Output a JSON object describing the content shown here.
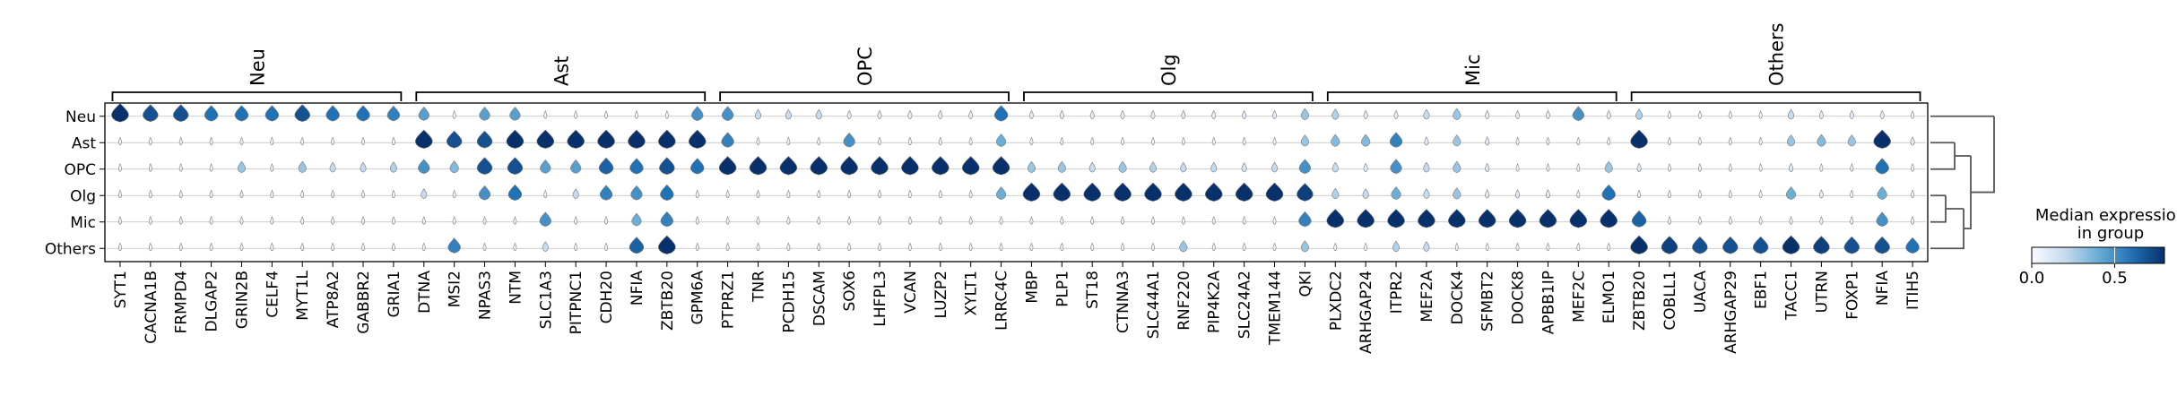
{
  "chart_data": {
    "type": "stacked-violin",
    "rows": [
      "Neu",
      "Ast",
      "OPC",
      "Olg",
      "Mic",
      "Others"
    ],
    "groups": [
      {
        "name": "Neu",
        "genes": [
          "SYT1",
          "CACNA1B",
          "FRMPD4",
          "DLGAP2",
          "GRIN2B",
          "CELF4",
          "MYT1L",
          "ATP8A2",
          "GABBR2",
          "GRIA1"
        ]
      },
      {
        "name": "Ast",
        "genes": [
          "DTNA",
          "MSI2",
          "NPAS3",
          "NTM",
          "SLC1A3",
          "PITPNC1",
          "CDH20",
          "NFIA",
          "ZBTB20",
          "GPM6A"
        ]
      },
      {
        "name": "OPC",
        "genes": [
          "PTPRZ1",
          "TNR",
          "PCDH15",
          "DSCAM",
          "SOX6",
          "LHFPL3",
          "VCAN",
          "LUZP2",
          "XYLT1",
          "LRRC4C"
        ]
      },
      {
        "name": "Olg",
        "genes": [
          "MBP",
          "PLP1",
          "ST18",
          "CTNNA3",
          "SLC44A1",
          "RNF220",
          "PIP4K2A",
          "SLC24A2",
          "TMEM144",
          "QKI"
        ]
      },
      {
        "name": "Mic",
        "genes": [
          "PLXDC2",
          "ARHGAP24",
          "ITPR2",
          "MEF2A",
          "DOCK4",
          "SFMBT2",
          "DOCK8",
          "APBB1IP",
          "MEF2C",
          "ELMO1"
        ]
      },
      {
        "name": "Others",
        "genes": [
          "ZBTB20",
          "COBLL1",
          "UACA",
          "ARHGAP29",
          "EBF1",
          "TACC1",
          "UTRN",
          "FOXP1",
          "NFIA",
          "ITIH5"
        ]
      }
    ],
    "median_expression": [
      [
        0.85,
        0.7,
        0.7,
        0.6,
        0.6,
        0.6,
        0.7,
        0.6,
        0.6,
        0.55,
        0.45,
        0.05,
        0.45,
        0.45,
        0.05,
        0.05,
        0.05,
        0.05,
        0.05,
        0.5,
        0.5,
        0.2,
        0.2,
        0.2,
        0.1,
        0.1,
        0.1,
        0.1,
        0.1,
        0.6,
        0.1,
        0.1,
        0.1,
        0.1,
        0.1,
        0.1,
        0.1,
        0.1,
        0.1,
        0.3,
        0.25,
        0.1,
        0.1,
        0.2,
        0.3,
        0.1,
        0.1,
        0.1,
        0.5,
        0.1,
        0.25,
        0.05,
        0.05,
        0.05,
        0.05,
        0.2,
        0.1,
        0.1,
        0.1,
        0.05
      ],
      [
        0.05,
        0.05,
        0.05,
        0.05,
        0.05,
        0.05,
        0.05,
        0.05,
        0.05,
        0.05,
        0.85,
        0.7,
        0.7,
        0.85,
        0.8,
        0.8,
        0.85,
        0.8,
        0.8,
        0.9,
        0.55,
        0.05,
        0.05,
        0.05,
        0.5,
        0.05,
        0.05,
        0.05,
        0.05,
        0.4,
        0.05,
        0.05,
        0.05,
        0.05,
        0.05,
        0.05,
        0.05,
        0.05,
        0.05,
        0.3,
        0.35,
        0.35,
        0.55,
        0.1,
        0.3,
        0.1,
        0.05,
        0.05,
        0.05,
        0.05,
        0.8,
        0.05,
        0.05,
        0.05,
        0.05,
        0.3,
        0.35,
        0.3,
        0.85,
        0.1
      ],
      [
        0.05,
        0.05,
        0.05,
        0.05,
        0.3,
        0.05,
        0.3,
        0.2,
        0.2,
        0.25,
        0.5,
        0.35,
        0.7,
        0.7,
        0.45,
        0.45,
        0.65,
        0.6,
        0.7,
        0.6,
        0.85,
        0.85,
        0.9,
        0.85,
        0.85,
        0.8,
        0.8,
        0.85,
        0.9,
        0.85,
        0.3,
        0.3,
        0.2,
        0.3,
        0.25,
        0.2,
        0.2,
        0.15,
        0.2,
        0.5,
        0.2,
        0.1,
        0.5,
        0.2,
        0.3,
        0.1,
        0.05,
        0.05,
        0.05,
        0.3,
        0.1,
        0.05,
        0.05,
        0.05,
        0.05,
        0.1,
        0.05,
        0.05,
        0.6,
        0.05
      ],
      [
        0.05,
        0.05,
        0.05,
        0.05,
        0.05,
        0.05,
        0.05,
        0.05,
        0.05,
        0.05,
        0.2,
        0.05,
        0.5,
        0.6,
        0.05,
        0.2,
        0.55,
        0.5,
        0.6,
        0.05,
        0.05,
        0.05,
        0.05,
        0.05,
        0.05,
        0.05,
        0.05,
        0.05,
        0.05,
        0.4,
        0.85,
        0.85,
        0.85,
        0.85,
        0.85,
        0.85,
        0.85,
        0.85,
        0.85,
        0.75,
        0.25,
        0.2,
        0.4,
        0.2,
        0.3,
        0.1,
        0.1,
        0.1,
        0.05,
        0.6,
        0.05,
        0.05,
        0.05,
        0.05,
        0.05,
        0.4,
        0.1,
        0.05,
        0.4,
        0.05
      ],
      [
        0.05,
        0.05,
        0.05,
        0.05,
        0.05,
        0.05,
        0.05,
        0.05,
        0.05,
        0.05,
        0.05,
        0.05,
        0.05,
        0.05,
        0.5,
        0.05,
        0.05,
        0.4,
        0.55,
        0.05,
        0.05,
        0.05,
        0.05,
        0.05,
        0.05,
        0.05,
        0.05,
        0.05,
        0.05,
        0.05,
        0.05,
        0.05,
        0.05,
        0.05,
        0.05,
        0.05,
        0.05,
        0.05,
        0.05,
        0.55,
        0.9,
        0.85,
        0.85,
        0.9,
        0.85,
        0.9,
        0.85,
        0.85,
        0.85,
        0.9,
        0.65,
        0.05,
        0.05,
        0.05,
        0.05,
        0.05,
        0.05,
        0.05,
        0.5,
        0.05
      ],
      [
        0.05,
        0.05,
        0.05,
        0.05,
        0.05,
        0.05,
        0.05,
        0.05,
        0.05,
        0.05,
        0.05,
        0.55,
        0.05,
        0.05,
        0.2,
        0.05,
        0.05,
        0.65,
        0.8,
        0.05,
        0.05,
        0.05,
        0.05,
        0.05,
        0.05,
        0.05,
        0.05,
        0.05,
        0.05,
        0.05,
        0.05,
        0.05,
        0.05,
        0.05,
        0.05,
        0.3,
        0.05,
        0.05,
        0.05,
        0.3,
        0.05,
        0.05,
        0.25,
        0.2,
        0.05,
        0.05,
        0.05,
        0.05,
        0.05,
        0.05,
        0.85,
        0.75,
        0.7,
        0.7,
        0.7,
        0.8,
        0.75,
        0.7,
        0.7,
        0.6
      ]
    ],
    "colorbar": {
      "title": "Median expression\nin group",
      "ticks": [
        "0.0",
        "0.5"
      ],
      "range": [
        0,
        0.8
      ]
    },
    "colormap": [
      "#f7fbff",
      "#c6dbef",
      "#6baed6",
      "#2171b5",
      "#08306b"
    ],
    "dendrogram": true
  }
}
